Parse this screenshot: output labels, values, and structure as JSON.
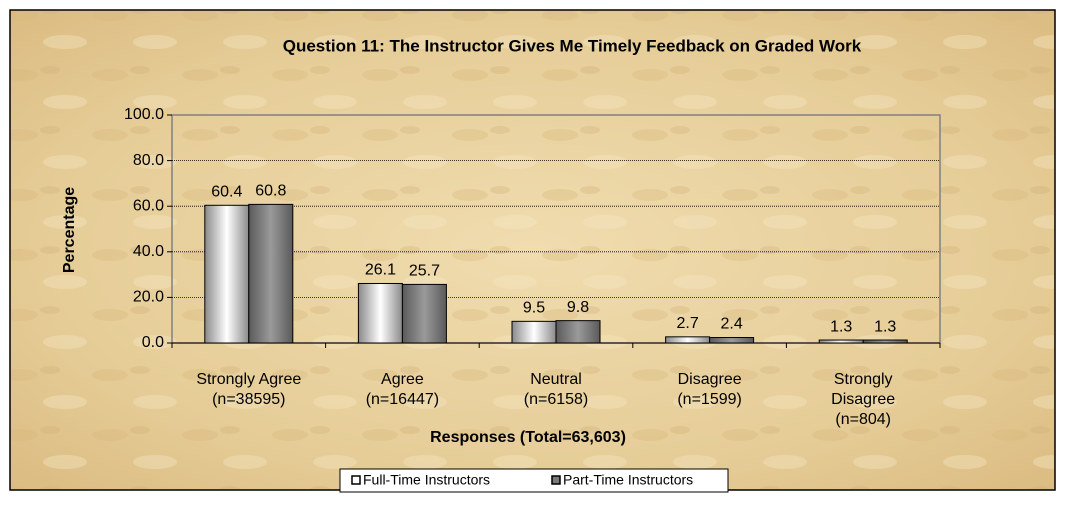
{
  "chart_data": {
    "type": "bar",
    "title": "Question 11:  The Instructor Gives Me Timely Feedback on Graded Work",
    "y_label": "Percentage",
    "x_label": "Responses (Total=63,603)",
    "categories": [
      [
        "Strongly Agree",
        "(n=38595)"
      ],
      [
        "Agree",
        "(n=16447)"
      ],
      [
        "Neutral",
        "(n=6158)"
      ],
      [
        "Disagree",
        "(n=1599)"
      ],
      [
        "Strongly",
        "Disagree",
        "(n=804)"
      ]
    ],
    "series": [
      {
        "name": "Full-Time Instructors",
        "color": "#ffffff",
        "values": [
          60.4,
          26.1,
          9.5,
          2.7,
          1.3
        ]
      },
      {
        "name": "Part-Time Instructors",
        "color": "#9a9a9a",
        "values": [
          60.8,
          25.7,
          9.8,
          2.4,
          1.3
        ]
      }
    ],
    "ylim": [
      0,
      100
    ],
    "yticks": [
      {
        "value": 0,
        "label": "0.0"
      },
      {
        "value": 20,
        "label": "20.0"
      },
      {
        "value": 40,
        "label": "40.0"
      },
      {
        "value": 60,
        "label": "60.0"
      },
      {
        "value": 80,
        "label": "80.0"
      },
      {
        "value": 100,
        "label": "100.0"
      }
    ],
    "grid": true,
    "legend": "bottom"
  }
}
